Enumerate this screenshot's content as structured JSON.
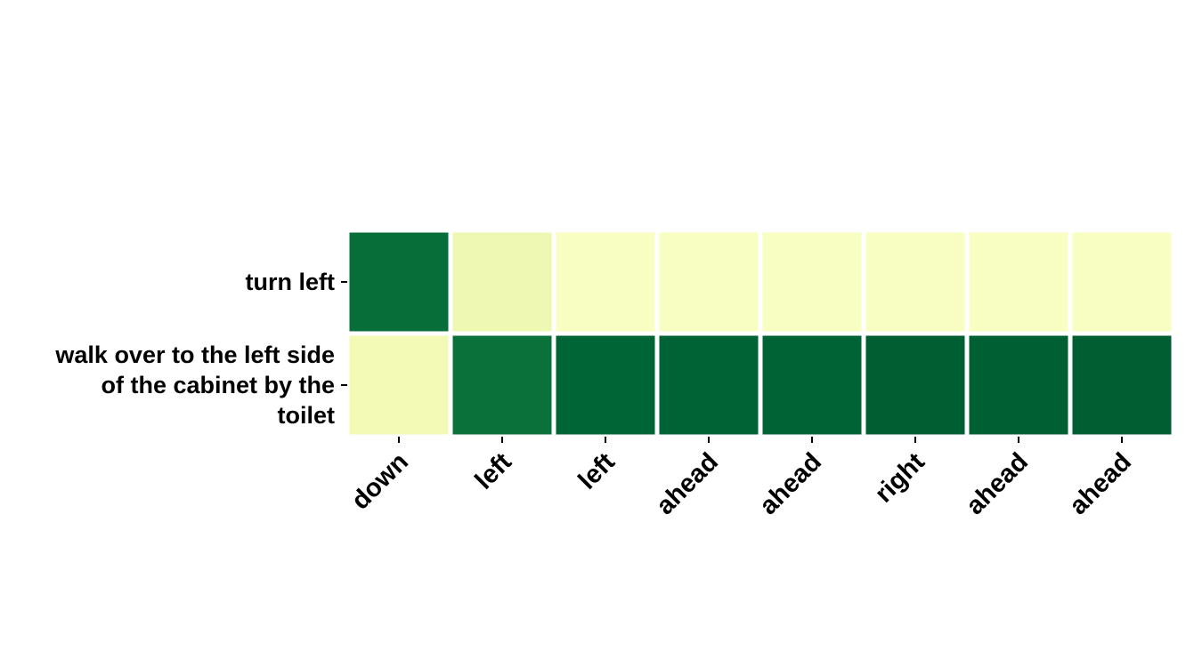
{
  "chart_data": {
    "type": "heatmap",
    "title": "",
    "xlabel": "",
    "ylabel": "",
    "colormap": "YlGn",
    "value_range": [
      0,
      1
    ],
    "x_categories": [
      "down",
      "left",
      "left",
      "ahead",
      "ahead",
      "right",
      "ahead",
      "ahead"
    ],
    "y_categories": [
      [
        "turn left"
      ],
      [
        "walk over to the left side",
        "of the cabinet by the",
        "toilet"
      ]
    ],
    "values": [
      [
        0.92,
        0.12,
        0.05,
        0.05,
        0.05,
        0.05,
        0.05,
        0.05
      ],
      [
        0.1,
        0.9,
        0.96,
        0.97,
        0.97,
        0.99,
        0.98,
        0.99
      ]
    ],
    "grid": false,
    "legend": "none"
  }
}
